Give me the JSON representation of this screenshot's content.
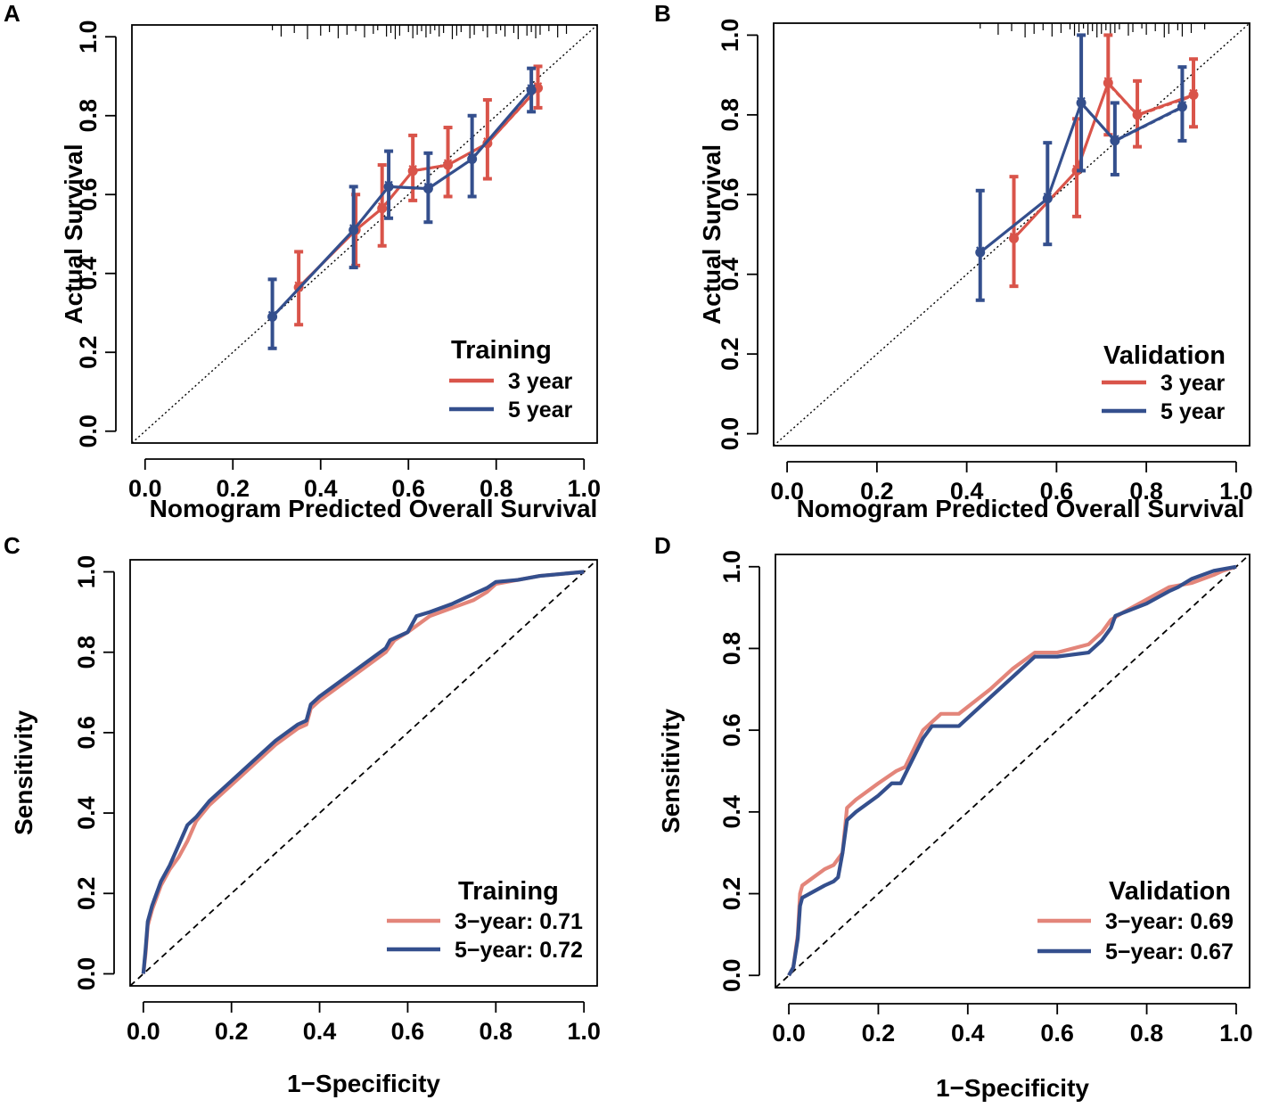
{
  "colors": {
    "three_year": "#d9544a",
    "five_year": "#344f8d",
    "three_year_roc": "#e3857a",
    "five_year_roc": "#344f8d"
  },
  "chart_data": [
    {
      "panel": "A",
      "type": "line",
      "subtype": "calibration",
      "xlabel": "Nomogram Predicted Overall Survival",
      "ylabel": "Actual Survival",
      "xlim": [
        -0.03,
        1.03
      ],
      "ylim": [
        -0.03,
        1.03
      ],
      "xticks": [
        "0.0",
        "0.2",
        "0.4",
        "0.6",
        "0.8",
        "1.0"
      ],
      "yticks": [
        "0.0",
        "0.2",
        "0.4",
        "0.6",
        "0.8",
        "1.0"
      ],
      "legend_title": "Training",
      "legend_position": "bottom-right",
      "rug": [
        0.29,
        0.31,
        0.34,
        0.37,
        0.4,
        0.42,
        0.44,
        0.46,
        0.48,
        0.5,
        0.52,
        0.53,
        0.55,
        0.56,
        0.57,
        0.58,
        0.6,
        0.61,
        0.62,
        0.63,
        0.64,
        0.65,
        0.66,
        0.67,
        0.68,
        0.7,
        0.71,
        0.72,
        0.74,
        0.75,
        0.77,
        0.78,
        0.8,
        0.81,
        0.82,
        0.84,
        0.85,
        0.87,
        0.88,
        0.89,
        0.9,
        0.92,
        0.94,
        0.96
      ],
      "series": [
        {
          "name": "3 year",
          "color": "#d9544a",
          "offset": 0.0,
          "points": [
            {
              "x": 0.35,
              "y": 0.365,
              "lo": 0.27,
              "hi": 0.455
            },
            {
              "x": 0.48,
              "y": 0.51,
              "lo": 0.42,
              "hi": 0.6
            },
            {
              "x": 0.54,
              "y": 0.565,
              "lo": 0.47,
              "hi": 0.675
            },
            {
              "x": 0.61,
              "y": 0.66,
              "lo": 0.585,
              "hi": 0.75
            },
            {
              "x": 0.69,
              "y": 0.675,
              "lo": 0.595,
              "hi": 0.77
            },
            {
              "x": 0.78,
              "y": 0.73,
              "lo": 0.64,
              "hi": 0.84
            },
            {
              "x": 0.895,
              "y": 0.87,
              "lo": 0.82,
              "hi": 0.925
            }
          ]
        },
        {
          "name": "5 year",
          "color": "#344f8d",
          "offset": 0.0,
          "points": [
            {
              "x": 0.29,
              "y": 0.29,
              "lo": 0.21,
              "hi": 0.385
            },
            {
              "x": 0.475,
              "y": 0.51,
              "lo": 0.415,
              "hi": 0.62
            },
            {
              "x": 0.555,
              "y": 0.62,
              "lo": 0.54,
              "hi": 0.71
            },
            {
              "x": 0.645,
              "y": 0.615,
              "lo": 0.53,
              "hi": 0.705
            },
            {
              "x": 0.745,
              "y": 0.69,
              "lo": 0.595,
              "hi": 0.8
            },
            {
              "x": 0.88,
              "y": 0.865,
              "lo": 0.81,
              "hi": 0.92
            }
          ]
        }
      ]
    },
    {
      "panel": "B",
      "type": "line",
      "subtype": "calibration",
      "xlabel": "Nomogram Predicted Overall Survival",
      "ylabel": "Actual Survival",
      "xlim": [
        -0.03,
        1.03
      ],
      "ylim": [
        -0.03,
        1.03
      ],
      "xticks": [
        "0.0",
        "0.2",
        "0.4",
        "0.6",
        "0.8",
        "1.0"
      ],
      "yticks": [
        "0.0",
        "0.2",
        "0.4",
        "0.6",
        "0.8",
        "1.0"
      ],
      "legend_title": "Validation",
      "legend_position": "bottom-right",
      "rug": [
        0.43,
        0.47,
        0.5,
        0.53,
        0.55,
        0.57,
        0.59,
        0.61,
        0.63,
        0.64,
        0.65,
        0.66,
        0.67,
        0.68,
        0.69,
        0.7,
        0.71,
        0.72,
        0.73,
        0.74,
        0.76,
        0.77,
        0.79,
        0.8,
        0.82,
        0.84,
        0.85,
        0.87,
        0.88,
        0.9,
        0.93
      ],
      "series": [
        {
          "name": "3 year",
          "color": "#d9544a",
          "points": [
            {
              "x": 0.505,
              "y": 0.49,
              "lo": 0.37,
              "hi": 0.645
            },
            {
              "x": 0.645,
              "y": 0.66,
              "lo": 0.545,
              "hi": 0.79
            },
            {
              "x": 0.715,
              "y": 0.88,
              "lo": 0.75,
              "hi": 1.0
            },
            {
              "x": 0.78,
              "y": 0.8,
              "lo": 0.72,
              "hi": 0.885
            },
            {
              "x": 0.905,
              "y": 0.85,
              "lo": 0.77,
              "hi": 0.94
            }
          ]
        },
        {
          "name": "5 year",
          "color": "#344f8d",
          "points": [
            {
              "x": 0.43,
              "y": 0.455,
              "lo": 0.335,
              "hi": 0.61
            },
            {
              "x": 0.58,
              "y": 0.59,
              "lo": 0.475,
              "hi": 0.73
            },
            {
              "x": 0.655,
              "y": 0.83,
              "lo": 0.66,
              "hi": 1.0
            },
            {
              "x": 0.73,
              "y": 0.735,
              "lo": 0.65,
              "hi": 0.83
            },
            {
              "x": 0.88,
              "y": 0.82,
              "lo": 0.735,
              "hi": 0.92
            }
          ]
        }
      ]
    },
    {
      "panel": "C",
      "type": "line",
      "subtype": "roc",
      "xlabel": "1−Specificity",
      "ylabel": "Sensitivity",
      "xlim": [
        -0.03,
        1.03
      ],
      "ylim": [
        -0.03,
        1.03
      ],
      "xticks": [
        "0.0",
        "0.2",
        "0.4",
        "0.6",
        "0.8",
        "1.0"
      ],
      "yticks": [
        "0.0",
        "0.2",
        "0.4",
        "0.6",
        "0.8",
        "1.0"
      ],
      "legend_title": "Training",
      "legend_position": "bottom-right",
      "series": [
        {
          "name": "3−year: 0.71",
          "color": "#e3857a",
          "auc": 0.71,
          "x": [
            0.0,
            0.005,
            0.01,
            0.02,
            0.04,
            0.06,
            0.08,
            0.1,
            0.12,
            0.15,
            0.2,
            0.25,
            0.3,
            0.35,
            0.37,
            0.38,
            0.4,
            0.45,
            0.5,
            0.55,
            0.57,
            0.6,
            0.65,
            0.7,
            0.75,
            0.78,
            0.8,
            0.85,
            0.9,
            0.95,
            1.0
          ],
          "y": [
            0.0,
            0.05,
            0.12,
            0.16,
            0.22,
            0.26,
            0.29,
            0.33,
            0.38,
            0.42,
            0.47,
            0.52,
            0.57,
            0.61,
            0.62,
            0.66,
            0.68,
            0.72,
            0.76,
            0.8,
            0.83,
            0.85,
            0.89,
            0.91,
            0.93,
            0.95,
            0.97,
            0.98,
            0.99,
            0.995,
            1.0
          ]
        },
        {
          "name": "5−year: 0.72",
          "color": "#344f8d",
          "auc": 0.72,
          "x": [
            0.0,
            0.005,
            0.01,
            0.02,
            0.04,
            0.06,
            0.08,
            0.1,
            0.12,
            0.15,
            0.2,
            0.25,
            0.3,
            0.35,
            0.37,
            0.38,
            0.4,
            0.45,
            0.5,
            0.55,
            0.56,
            0.58,
            0.6,
            0.62,
            0.65,
            0.7,
            0.75,
            0.78,
            0.8,
            0.85,
            0.9,
            0.95,
            1.0
          ],
          "y": [
            0.0,
            0.06,
            0.13,
            0.17,
            0.23,
            0.27,
            0.32,
            0.37,
            0.39,
            0.43,
            0.48,
            0.53,
            0.58,
            0.62,
            0.63,
            0.67,
            0.69,
            0.73,
            0.77,
            0.81,
            0.83,
            0.84,
            0.85,
            0.89,
            0.9,
            0.92,
            0.945,
            0.96,
            0.975,
            0.98,
            0.99,
            0.995,
            1.0
          ]
        }
      ]
    },
    {
      "panel": "D",
      "type": "line",
      "subtype": "roc",
      "xlabel": "1−Specificity",
      "ylabel": "Sensitivity",
      "xlim": [
        -0.03,
        1.03
      ],
      "ylim": [
        -0.03,
        1.03
      ],
      "xticks": [
        "0.0",
        "0.2",
        "0.4",
        "0.6",
        "0.8",
        "1.0"
      ],
      "yticks": [
        "0.0",
        "0.2",
        "0.4",
        "0.6",
        "0.8",
        "1.0"
      ],
      "legend_title": "Validation",
      "legend_position": "bottom-right",
      "series": [
        {
          "name": "3−year: 0.69",
          "color": "#e3857a",
          "auc": 0.69,
          "x": [
            0.0,
            0.01,
            0.02,
            0.025,
            0.03,
            0.08,
            0.1,
            0.12,
            0.13,
            0.15,
            0.2,
            0.24,
            0.26,
            0.3,
            0.32,
            0.34,
            0.38,
            0.45,
            0.5,
            0.55,
            0.6,
            0.67,
            0.7,
            0.72,
            0.75,
            0.8,
            0.85,
            0.9,
            0.95,
            0.97,
            1.0
          ],
          "y": [
            0.0,
            0.02,
            0.1,
            0.2,
            0.22,
            0.26,
            0.27,
            0.3,
            0.41,
            0.43,
            0.47,
            0.5,
            0.51,
            0.6,
            0.62,
            0.64,
            0.64,
            0.7,
            0.75,
            0.79,
            0.79,
            0.81,
            0.84,
            0.87,
            0.89,
            0.92,
            0.95,
            0.96,
            0.98,
            0.99,
            1.0
          ]
        },
        {
          "name": "5−year: 0.67",
          "color": "#344f8d",
          "auc": 0.67,
          "x": [
            0.0,
            0.01,
            0.02,
            0.025,
            0.03,
            0.08,
            0.1,
            0.11,
            0.12,
            0.13,
            0.15,
            0.2,
            0.23,
            0.25,
            0.3,
            0.32,
            0.38,
            0.45,
            0.5,
            0.55,
            0.6,
            0.67,
            0.7,
            0.72,
            0.73,
            0.8,
            0.85,
            0.87,
            0.9,
            0.95,
            1.0
          ],
          "y": [
            0.0,
            0.02,
            0.09,
            0.17,
            0.19,
            0.22,
            0.23,
            0.24,
            0.3,
            0.38,
            0.4,
            0.44,
            0.47,
            0.47,
            0.58,
            0.61,
            0.61,
            0.68,
            0.73,
            0.78,
            0.78,
            0.79,
            0.82,
            0.85,
            0.88,
            0.91,
            0.94,
            0.95,
            0.97,
            0.99,
            1.0
          ]
        }
      ]
    }
  ]
}
